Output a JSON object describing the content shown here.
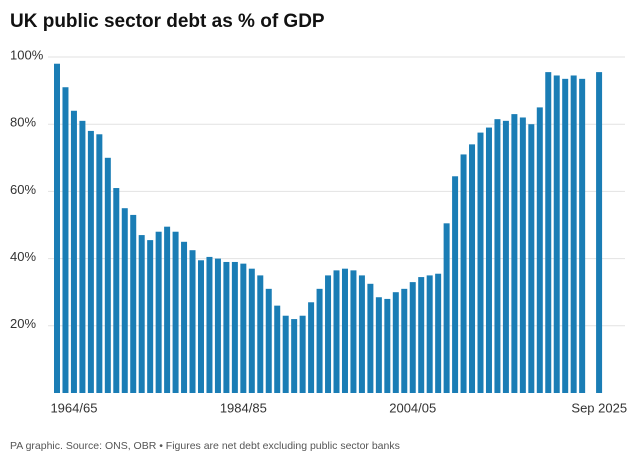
{
  "chart_data": {
    "type": "bar",
    "title": "UK public sector debt as % of GDP",
    "footnote": "PA graphic. Source: ONS, OBR • Figures are net debt excluding public sector banks",
    "categories": [
      null,
      null,
      "1964/65",
      null,
      null,
      null,
      null,
      null,
      null,
      null,
      null,
      null,
      null,
      null,
      null,
      null,
      null,
      null,
      null,
      null,
      null,
      null,
      "1984/85",
      null,
      null,
      null,
      null,
      null,
      null,
      null,
      null,
      null,
      null,
      null,
      null,
      null,
      null,
      null,
      null,
      null,
      null,
      null,
      "2004/05",
      null,
      null,
      null,
      null,
      null,
      null,
      null,
      null,
      null,
      null,
      null,
      null,
      null,
      null,
      null,
      null,
      null,
      null,
      null,
      null,
      null,
      "Sep 2025"
    ],
    "values": [
      98,
      91,
      84,
      81,
      78,
      77,
      70,
      61,
      55,
      53,
      47,
      45.5,
      48,
      49.5,
      48,
      45,
      42.5,
      39.5,
      40.5,
      40,
      39,
      39,
      38.5,
      37,
      35,
      31,
      26,
      23,
      22,
      23,
      27,
      31,
      35,
      36.5,
      37,
      36.5,
      35,
      32.5,
      28.5,
      28,
      30,
      31,
      33,
      34.5,
      35,
      35.5,
      50.5,
      64.5,
      71,
      74,
      77.5,
      79,
      81.5,
      81,
      83,
      82,
      80,
      85,
      95.5,
      94.5,
      93.5,
      94.5,
      93.5,
      null,
      95.5
    ],
    "color": "#1a7db5",
    "ylim": [
      0,
      100
    ],
    "yticks": [
      {
        "value": 20,
        "label": "20%"
      },
      {
        "value": 40,
        "label": "40%"
      },
      {
        "value": 60,
        "label": "60%"
      },
      {
        "value": 80,
        "label": "80%"
      },
      {
        "value": 100,
        "label": "100%"
      }
    ],
    "grid": true
  }
}
